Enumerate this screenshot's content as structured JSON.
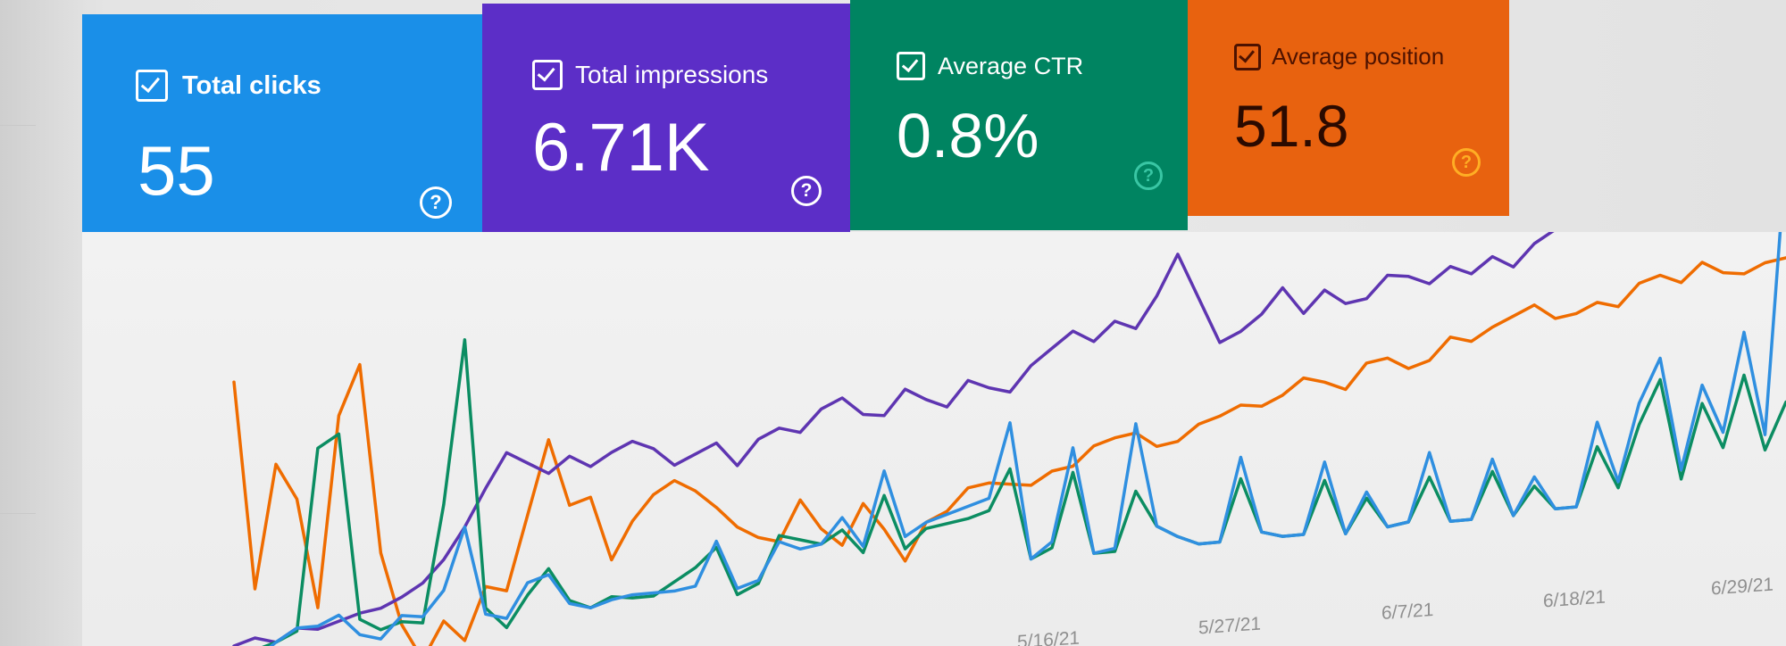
{
  "cards": [
    {
      "label": "Total clicks",
      "value": "55",
      "color": "#1a8fe8"
    },
    {
      "label": "Total impressions",
      "value": "6.71K",
      "color": "#5c2ec7"
    },
    {
      "label": "Average CTR",
      "value": "0.8%",
      "color": "#008461"
    },
    {
      "label": "Average position",
      "value": "51.8",
      "color": "#e8620f"
    }
  ],
  "axis_ticks": [
    "5/16/21",
    "5/27/21",
    "6/7/21",
    "6/18/21",
    "6/29/21"
  ],
  "icons": {
    "checkbox": "checkbox-checked-icon",
    "help": "help-circle-icon"
  },
  "chart_data": {
    "type": "line",
    "x_tick_labels": [
      "5/16/21",
      "5/27/21",
      "6/7/21",
      "6/18/21",
      "6/29/21"
    ],
    "series": [
      {
        "color": "#ef6c00",
        "values": [
          0.86,
          0.18,
          0.58,
          0.46,
          0.1,
          0.72,
          0.88,
          0.26,
          0.02,
          -0.1,
          0.02,
          -0.05,
          0.12,
          0.1,
          0.34,
          0.58,
          0.36,
          0.38,
          0.17,
          0.29,
          0.37,
          0.41,
          0.37,
          0.31,
          0.24,
          0.2,
          0.18,
          0.31,
          0.21,
          0.15,
          0.28,
          0.19,
          0.08,
          0.2,
          0.23,
          0.3,
          0.31,
          0.3,
          0.29,
          0.33,
          0.34,
          0.4,
          0.42,
          0.43,
          0.38,
          0.39,
          0.44,
          0.46,
          0.49,
          0.48,
          0.51,
          0.56,
          0.54,
          0.51,
          0.59,
          0.6,
          0.56,
          0.58,
          0.65,
          0.63,
          0.67,
          0.7,
          0.73,
          0.68,
          0.69,
          0.72,
          0.7,
          0.77,
          0.79,
          0.76,
          0.82,
          0.78,
          0.77,
          0.8,
          0.81
        ]
      },
      {
        "color": "#5e35b1",
        "values": [
          0.0,
          0.02,
          0.0,
          0.04,
          0.03,
          0.05,
          0.07,
          0.08,
          0.11,
          0.15,
          0.22,
          0.32,
          0.44,
          0.55,
          0.51,
          0.47,
          0.52,
          0.48,
          0.52,
          0.55,
          0.52,
          0.46,
          0.49,
          0.52,
          0.44,
          0.52,
          0.55,
          0.53,
          0.6,
          0.63,
          0.57,
          0.56,
          0.64,
          0.6,
          0.57,
          0.65,
          0.62,
          0.6,
          0.68,
          0.73,
          0.78,
          0.74,
          0.8,
          0.77,
          0.87,
          1.0,
          0.85,
          0.7,
          0.73,
          0.78,
          0.86,
          0.77,
          0.84,
          0.79,
          0.8,
          0.87,
          0.86,
          0.83,
          0.88,
          0.85,
          0.9,
          0.86,
          0.93,
          0.97,
          1.0,
          0.99,
          0.97,
          1.1,
          1.05,
          1.02,
          1.08,
          1.06,
          1.18,
          1.12,
          1.05
        ]
      },
      {
        "color": "#0b8d62",
        "values": [
          -0.05,
          -0.02,
          0.0,
          0.03,
          0.62,
          0.66,
          0.05,
          0.01,
          0.03,
          0.02,
          0.4,
          0.93,
          0.05,
          -0.02,
          0.08,
          0.16,
          0.05,
          0.02,
          0.05,
          0.04,
          0.04,
          0.08,
          0.12,
          0.18,
          0.02,
          0.05,
          0.2,
          0.18,
          0.16,
          0.2,
          0.12,
          0.3,
          0.12,
          0.18,
          0.19,
          0.2,
          0.22,
          0.35,
          0.05,
          0.08,
          0.32,
          0.05,
          0.05,
          0.24,
          0.12,
          0.08,
          0.05,
          0.05,
          0.25,
          0.07,
          0.05,
          0.05,
          0.22,
          0.04,
          0.15,
          0.05,
          0.06,
          0.2,
          0.05,
          0.05,
          0.2,
          0.05,
          0.14,
          0.06,
          0.06,
          0.25,
          0.11,
          0.31,
          0.45,
          0.12,
          0.36,
          0.21,
          0.44,
          0.19,
          0.34
        ]
      },
      {
        "color": "#2f8fe0",
        "values": [
          -0.08,
          -0.05,
          0.0,
          0.04,
          0.04,
          0.07,
          0.0,
          -0.02,
          0.05,
          0.04,
          0.12,
          0.32,
          0.03,
          0.01,
          0.12,
          0.14,
          0.04,
          0.02,
          0.04,
          0.05,
          0.05,
          0.05,
          0.06,
          0.2,
          0.04,
          0.06,
          0.18,
          0.15,
          0.16,
          0.24,
          0.14,
          0.38,
          0.16,
          0.2,
          0.22,
          0.24,
          0.26,
          0.5,
          0.05,
          0.1,
          0.4,
          0.05,
          0.06,
          0.46,
          0.12,
          0.08,
          0.05,
          0.05,
          0.32,
          0.07,
          0.05,
          0.05,
          0.28,
          0.04,
          0.17,
          0.05,
          0.06,
          0.28,
          0.05,
          0.05,
          0.24,
          0.05,
          0.17,
          0.06,
          0.06,
          0.33,
          0.13,
          0.38,
          0.52,
          0.15,
          0.42,
          0.26,
          0.58,
          0.24,
          1.15
        ]
      }
    ]
  }
}
